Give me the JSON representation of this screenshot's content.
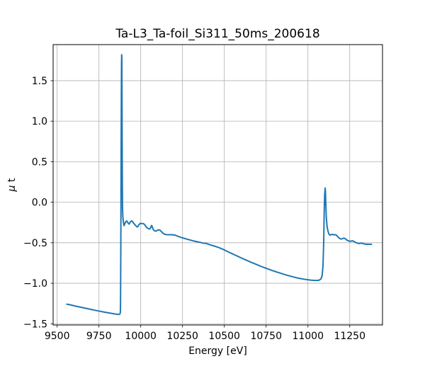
{
  "chart_data": {
    "type": "line",
    "title": "Ta-L3_Ta-foil_Si311_50ms_200618",
    "xlabel": "Energy [eV]",
    "ylabel": "μ t",
    "xlim": [
      9476,
      11446
    ],
    "ylim": [
      -1.515,
      1.945
    ],
    "x_ticks": [
      9500,
      9750,
      10000,
      10250,
      10500,
      10750,
      11000,
      11250
    ],
    "y_ticks": [
      -1.5,
      -1.0,
      -0.5,
      0.0,
      0.5,
      1.0,
      1.5
    ],
    "grid": true,
    "legend": "none",
    "line_color": "#1f77b4",
    "grid_color": "#b0b0b0",
    "frame_color": "#000000",
    "series": [
      {
        "name": "mu_t_spectrum",
        "x": [
          9558,
          9575,
          9600,
          9625,
          9650,
          9675,
          9700,
          9725,
          9750,
          9775,
          9800,
          9820,
          9840,
          9855,
          9866,
          9872,
          9876,
          9878,
          9879,
          9880,
          9881,
          9882,
          9883,
          9884,
          9885,
          9886,
          9887,
          9888,
          9889,
          9890,
          9891,
          9893,
          9896,
          9900,
          9904,
          9908,
          9912,
          9916,
          9921,
          9926,
          9930,
          9934,
          9939,
          9944,
          9948,
          9953,
          9959,
          9966,
          9973,
          9979,
          9984,
          9989,
          9994,
          10000,
          10006,
          10012,
          10018,
          10024,
          10031,
          10038,
          10045,
          10051,
          10056,
          10060,
          10064,
          10068,
          10072,
          10077,
          10083,
          10089,
          10096,
          10103,
          10110,
          10117,
          10124,
          10131,
          10138,
          10146,
          10154,
          10163,
          10172,
          10181,
          10191,
          10203,
          10214,
          10226,
          10238,
          10250,
          10262,
          10275,
          10288,
          10300,
          10312,
          10324,
          10336,
          10348,
          10360,
          10372,
          10384,
          10396,
          10410,
          10425,
          10440,
          10455,
          10470,
          10487,
          10505,
          10523,
          10541,
          10560,
          10580,
          10600,
          10620,
          10640,
          10660,
          10680,
          10700,
          10720,
          10740,
          10760,
          10780,
          10800,
          10820,
          10840,
          10860,
          10880,
          10900,
          10920,
          10940,
          10960,
          10980,
          11000,
          11020,
          11040,
          11055,
          11068,
          11078,
          11085,
          11090,
          11094,
          11097,
          11100,
          11103,
          11105,
          11107,
          11110,
          11114,
          11119,
          11125,
          11131,
          11137,
          11143,
          11150,
          11157,
          11163,
          11169,
          11176,
          11183,
          11190,
          11197,
          11204,
          11210,
          11216,
          11223,
          11231,
          11239,
          11247,
          11254,
          11260,
          11266,
          11273,
          11281,
          11289,
          11297,
          11305,
          11312,
          11318,
          11325,
          11333,
          11342,
          11352,
          11362,
          11372,
          11380
        ],
        "y": [
          -1.258,
          -1.265,
          -1.277,
          -1.289,
          -1.3,
          -1.311,
          -1.322,
          -1.333,
          -1.343,
          -1.353,
          -1.363,
          -1.37,
          -1.377,
          -1.382,
          -1.384,
          -1.383,
          -1.377,
          -1.36,
          -1.28,
          -0.95,
          -0.45,
          0.15,
          0.75,
          1.3,
          1.7,
          1.82,
          1.76,
          1.28,
          0.7,
          0.22,
          -0.06,
          -0.18,
          -0.24,
          -0.29,
          -0.27,
          -0.25,
          -0.238,
          -0.231,
          -0.245,
          -0.262,
          -0.27,
          -0.258,
          -0.24,
          -0.232,
          -0.232,
          -0.247,
          -0.263,
          -0.28,
          -0.295,
          -0.306,
          -0.298,
          -0.277,
          -0.266,
          -0.261,
          -0.262,
          -0.263,
          -0.266,
          -0.28,
          -0.3,
          -0.316,
          -0.325,
          -0.33,
          -0.327,
          -0.31,
          -0.288,
          -0.295,
          -0.325,
          -0.343,
          -0.353,
          -0.357,
          -0.351,
          -0.343,
          -0.341,
          -0.349,
          -0.363,
          -0.379,
          -0.39,
          -0.397,
          -0.4,
          -0.401,
          -0.401,
          -0.401,
          -0.402,
          -0.405,
          -0.413,
          -0.423,
          -0.432,
          -0.44,
          -0.447,
          -0.455,
          -0.462,
          -0.469,
          -0.476,
          -0.482,
          -0.487,
          -0.492,
          -0.498,
          -0.505,
          -0.506,
          -0.512,
          -0.523,
          -0.532,
          -0.541,
          -0.551,
          -0.562,
          -0.577,
          -0.594,
          -0.612,
          -0.63,
          -0.648,
          -0.667,
          -0.686,
          -0.705,
          -0.723,
          -0.741,
          -0.758,
          -0.775,
          -0.792,
          -0.808,
          -0.823,
          -0.838,
          -0.852,
          -0.866,
          -0.879,
          -0.892,
          -0.904,
          -0.915,
          -0.926,
          -0.936,
          -0.944,
          -0.951,
          -0.957,
          -0.962,
          -0.965,
          -0.966,
          -0.961,
          -0.946,
          -0.905,
          -0.79,
          -0.52,
          -0.15,
          0.09,
          0.175,
          0.12,
          -0.02,
          -0.19,
          -0.29,
          -0.35,
          -0.39,
          -0.405,
          -0.403,
          -0.397,
          -0.399,
          -0.404,
          -0.4,
          -0.404,
          -0.42,
          -0.436,
          -0.448,
          -0.453,
          -0.452,
          -0.446,
          -0.443,
          -0.45,
          -0.464,
          -0.474,
          -0.48,
          -0.482,
          -0.479,
          -0.476,
          -0.482,
          -0.492,
          -0.5,
          -0.505,
          -0.51,
          -0.508,
          -0.504,
          -0.507,
          -0.513,
          -0.517,
          -0.519,
          -0.519,
          -0.519,
          -0.52
        ]
      }
    ]
  }
}
